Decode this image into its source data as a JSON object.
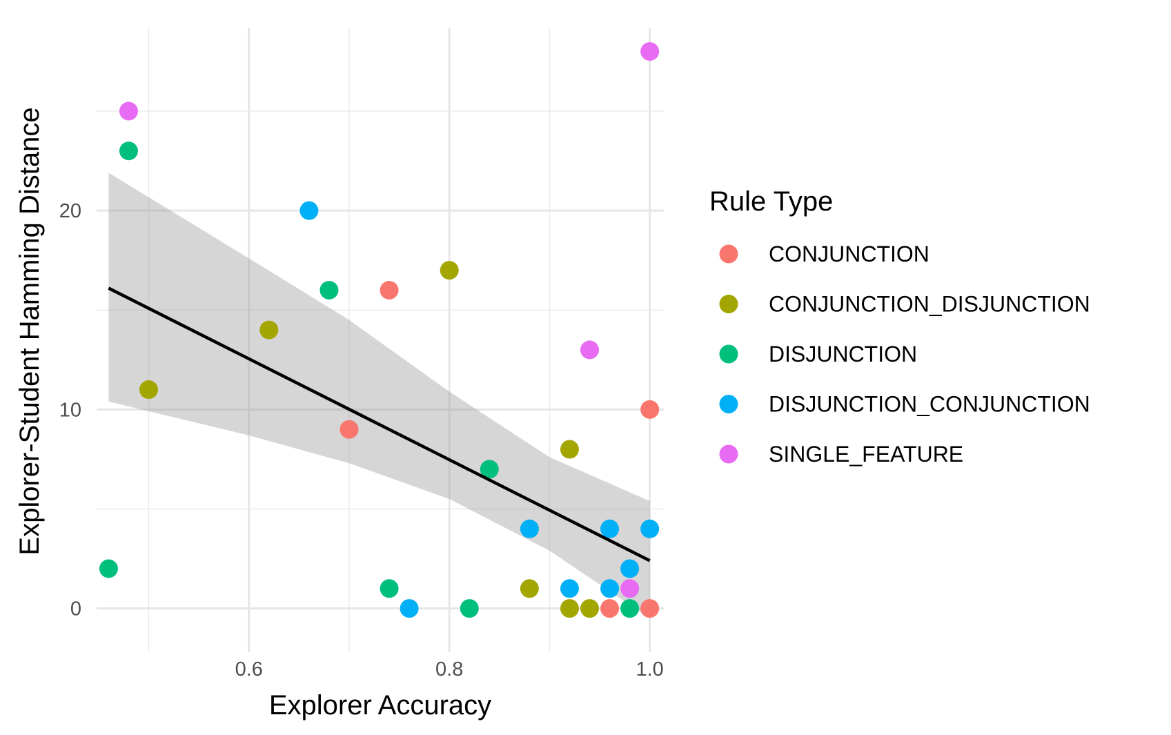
{
  "chart_data": {
    "type": "scatter",
    "title": "",
    "xlabel": "Explorer Accuracy",
    "ylabel": "Explorer-Student Hamming Distance",
    "xlim": [
      0.448,
      1.014
    ],
    "ylim": [
      -2.2,
      29.2
    ],
    "x_ticks": [
      0.6,
      0.8,
      1.0
    ],
    "x_tick_labels": [
      "0.6",
      "0.8",
      "1.0"
    ],
    "x_minor_ticks": [
      0.5,
      0.7,
      0.9
    ],
    "y_ticks": [
      0,
      10,
      20
    ],
    "y_tick_labels": [
      "0",
      "10",
      "20"
    ],
    "y_minor_ticks": [
      5,
      15,
      25
    ],
    "grid": true,
    "legend": {
      "title": "Rule Type",
      "position": "right"
    },
    "series": [
      {
        "name": "CONJUNCTION",
        "color": "#F8766D",
        "points": [
          [
            0.74,
            16
          ],
          [
            0.7,
            9
          ],
          [
            1.0,
            10
          ],
          [
            0.96,
            0
          ],
          [
            1.0,
            0
          ]
        ]
      },
      {
        "name": "CONJUNCTION_DISJUNCTION",
        "color": "#A3A500",
        "points": [
          [
            0.8,
            17
          ],
          [
            0.62,
            14
          ],
          [
            0.5,
            11
          ],
          [
            0.92,
            8
          ],
          [
            0.88,
            1
          ],
          [
            0.92,
            0
          ],
          [
            0.94,
            0
          ]
        ]
      },
      {
        "name": "DISJUNCTION",
        "color": "#00BF7D",
        "points": [
          [
            0.48,
            23
          ],
          [
            0.68,
            16
          ],
          [
            0.84,
            7
          ],
          [
            0.46,
            2
          ],
          [
            0.74,
            1
          ],
          [
            0.82,
            0
          ],
          [
            0.98,
            0
          ]
        ]
      },
      {
        "name": "DISJUNCTION_CONJUNCTION",
        "color": "#00B0F6",
        "points": [
          [
            0.66,
            20
          ],
          [
            0.88,
            4
          ],
          [
            0.96,
            4
          ],
          [
            1.0,
            4
          ],
          [
            0.98,
            2
          ],
          [
            0.92,
            1
          ],
          [
            0.96,
            1
          ],
          [
            0.76,
            0
          ]
        ]
      },
      {
        "name": "SINGLE_FEATURE",
        "color": "#E76BF3",
        "points": [
          [
            1.0,
            28
          ],
          [
            0.48,
            25
          ],
          [
            0.94,
            13
          ],
          [
            0.98,
            1
          ]
        ]
      }
    ],
    "regression": {
      "method": "linear",
      "color": "#000000",
      "band_color": "#999999",
      "x_range": [
        0.46,
        1.0
      ],
      "fit": [
        [
          0.46,
          16.1
        ],
        [
          1.0,
          2.4
        ]
      ],
      "ci_lower": [
        [
          0.46,
          10.4
        ],
        [
          0.6,
          8.7
        ],
        [
          0.7,
          7.3
        ],
        [
          0.8,
          5.5
        ],
        [
          0.9,
          2.9
        ],
        [
          1.0,
          -0.5
        ]
      ],
      "ci_upper": [
        [
          0.46,
          21.9
        ],
        [
          0.6,
          17.6
        ],
        [
          0.7,
          14.5
        ],
        [
          0.8,
          10.9
        ],
        [
          0.9,
          7.6
        ],
        [
          1.0,
          5.4
        ]
      ]
    }
  }
}
